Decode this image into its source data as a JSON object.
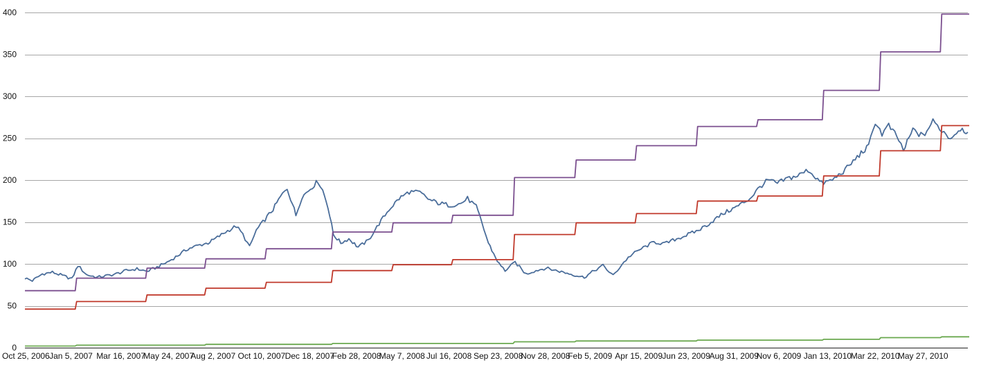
{
  "chart_data": {
    "type": "line",
    "title": "",
    "xlabel": "",
    "ylabel": "",
    "ylim": [
      0,
      400
    ],
    "y_ticks": [
      0,
      50,
      100,
      150,
      200,
      250,
      300,
      350,
      400
    ],
    "x_tick_labels": [
      "Oct 25, 2006",
      "Jan 5, 2007",
      "Mar 16, 2007",
      "May 24, 2007",
      "Aug 2, 2007",
      "Oct 10, 2007",
      "Dec 18, 2007",
      "Feb 28, 2008",
      "May 7, 2008",
      "Jul 16, 2008",
      "Sep 23, 2008",
      "Nov 28, 2008",
      "Feb 5, 2009",
      "Apr 15, 2009",
      "Jun 23, 2009",
      "Aug 31, 2009",
      "Nov 6, 2009",
      "Jan 13, 2010",
      "Mar 22, 2010",
      "May 27, 2010"
    ],
    "x_range": [
      "2006-10-25",
      "2010-08-31"
    ],
    "grid": true,
    "legend": "none",
    "series": [
      {
        "color": "#4a6d9a",
        "style": "line",
        "points": [
          [
            "2006-10-25",
            83
          ],
          [
            "2006-11-05",
            80
          ],
          [
            "2006-11-20",
            88
          ],
          [
            "2006-12-05",
            90
          ],
          [
            "2006-12-20",
            86
          ],
          [
            "2007-01-03",
            82
          ],
          [
            "2007-01-12",
            98
          ],
          [
            "2007-01-25",
            87
          ],
          [
            "2007-02-10",
            84
          ],
          [
            "2007-02-25",
            86
          ],
          [
            "2007-03-10",
            88
          ],
          [
            "2007-03-25",
            92
          ],
          [
            "2007-04-10",
            94
          ],
          [
            "2007-04-25",
            91
          ],
          [
            "2007-05-10",
            96
          ],
          [
            "2007-05-25",
            102
          ],
          [
            "2007-06-10",
            110
          ],
          [
            "2007-06-25",
            118
          ],
          [
            "2007-07-10",
            122
          ],
          [
            "2007-07-25",
            125
          ],
          [
            "2007-08-05",
            130
          ],
          [
            "2007-08-20",
            138
          ],
          [
            "2007-09-05",
            145
          ],
          [
            "2007-09-15",
            135
          ],
          [
            "2007-09-25",
            120
          ],
          [
            "2007-10-05",
            140
          ],
          [
            "2007-10-15",
            150
          ],
          [
            "2007-10-30",
            165
          ],
          [
            "2007-11-10",
            180
          ],
          [
            "2007-11-20",
            190
          ],
          [
            "2007-11-28",
            172
          ],
          [
            "2007-12-03",
            158
          ],
          [
            "2007-12-12",
            180
          ],
          [
            "2007-12-25",
            190
          ],
          [
            "2008-01-05",
            199
          ],
          [
            "2008-01-12",
            188
          ],
          [
            "2008-01-20",
            168
          ],
          [
            "2008-01-28",
            135
          ],
          [
            "2008-02-08",
            125
          ],
          [
            "2008-02-20",
            130
          ],
          [
            "2008-03-05",
            120
          ],
          [
            "2008-03-20",
            128
          ],
          [
            "2008-04-05",
            148
          ],
          [
            "2008-04-20",
            165
          ],
          [
            "2008-05-05",
            178
          ],
          [
            "2008-05-20",
            186
          ],
          [
            "2008-06-05",
            185
          ],
          [
            "2008-06-20",
            176
          ],
          [
            "2008-07-05",
            172
          ],
          [
            "2008-07-20",
            170
          ],
          [
            "2008-08-05",
            172
          ],
          [
            "2008-08-15",
            178
          ],
          [
            "2008-08-28",
            168
          ],
          [
            "2008-09-05",
            150
          ],
          [
            "2008-09-15",
            125
          ],
          [
            "2008-09-23",
            112
          ],
          [
            "2008-10-01",
            100
          ],
          [
            "2008-10-10",
            92
          ],
          [
            "2008-10-25",
            102
          ],
          [
            "2008-11-10",
            88
          ],
          [
            "2008-11-25",
            92
          ],
          [
            "2008-12-10",
            95
          ],
          [
            "2009-01-05",
            90
          ],
          [
            "2009-01-25",
            86
          ],
          [
            "2009-02-05",
            84
          ],
          [
            "2009-02-20",
            92
          ],
          [
            "2009-03-05",
            98
          ],
          [
            "2009-03-20",
            86
          ],
          [
            "2009-04-05",
            102
          ],
          [
            "2009-04-15",
            110
          ],
          [
            "2009-05-01",
            118
          ],
          [
            "2009-05-20",
            126
          ],
          [
            "2009-06-05",
            124
          ],
          [
            "2009-06-23",
            130
          ],
          [
            "2009-07-10",
            135
          ],
          [
            "2009-07-25",
            140
          ],
          [
            "2009-08-10",
            148
          ],
          [
            "2009-08-31",
            160
          ],
          [
            "2009-09-20",
            168
          ],
          [
            "2009-10-10",
            178
          ],
          [
            "2009-10-25",
            192
          ],
          [
            "2009-11-06",
            200
          ],
          [
            "2009-11-20",
            196
          ],
          [
            "2009-12-05",
            202
          ],
          [
            "2009-12-20",
            205
          ],
          [
            "2010-01-05",
            212
          ],
          [
            "2010-01-13",
            206
          ],
          [
            "2010-01-25",
            196
          ],
          [
            "2010-02-10",
            200
          ],
          [
            "2010-03-01",
            212
          ],
          [
            "2010-03-22",
            230
          ],
          [
            "2010-04-05",
            240
          ],
          [
            "2010-04-15",
            270
          ],
          [
            "2010-04-25",
            255
          ],
          [
            "2010-05-05",
            265
          ],
          [
            "2010-05-20",
            248
          ],
          [
            "2010-05-27",
            235
          ],
          [
            "2010-06-10",
            260
          ],
          [
            "2010-06-25",
            252
          ],
          [
            "2010-07-10",
            270
          ],
          [
            "2010-07-20",
            262
          ],
          [
            "2010-08-05",
            250
          ],
          [
            "2010-08-20",
            262
          ],
          [
            "2010-08-31",
            257
          ]
        ]
      },
      {
        "color": "#7b4f8f",
        "style": "step",
        "points": [
          [
            "2006-10-25",
            68
          ],
          [
            "2007-01-08",
            83
          ],
          [
            "2007-04-23",
            95
          ],
          [
            "2007-07-20",
            106
          ],
          [
            "2007-10-18",
            118
          ],
          [
            "2008-01-25",
            138
          ],
          [
            "2008-04-24",
            149
          ],
          [
            "2008-07-22",
            158
          ],
          [
            "2008-10-22",
            203
          ],
          [
            "2009-01-22",
            224
          ],
          [
            "2009-04-22",
            241
          ],
          [
            "2009-07-22",
            264
          ],
          [
            "2009-10-20",
            272
          ],
          [
            "2010-01-26",
            307
          ],
          [
            "2010-04-21",
            353
          ],
          [
            "2010-07-21",
            398
          ],
          [
            "2010-08-31",
            398
          ]
        ]
      },
      {
        "color": "#c0392b",
        "style": "step",
        "points": [
          [
            "2006-10-25",
            46
          ],
          [
            "2007-01-08",
            55
          ],
          [
            "2007-04-23",
            63
          ],
          [
            "2007-07-20",
            71
          ],
          [
            "2007-10-18",
            78
          ],
          [
            "2008-01-25",
            92
          ],
          [
            "2008-04-24",
            99
          ],
          [
            "2008-07-22",
            105
          ],
          [
            "2008-10-22",
            135
          ],
          [
            "2009-01-22",
            149
          ],
          [
            "2009-04-22",
            160
          ],
          [
            "2009-07-22",
            175
          ],
          [
            "2009-10-20",
            181
          ],
          [
            "2010-01-26",
            205
          ],
          [
            "2010-04-21",
            235
          ],
          [
            "2010-07-21",
            265
          ],
          [
            "2010-08-31",
            265
          ]
        ]
      },
      {
        "color": "#6aa84f",
        "style": "step",
        "points": [
          [
            "2006-10-25",
            2
          ],
          [
            "2007-01-08",
            3
          ],
          [
            "2007-07-20",
            4
          ],
          [
            "2007-10-18",
            4
          ],
          [
            "2008-01-25",
            5
          ],
          [
            "2008-07-22",
            5
          ],
          [
            "2008-10-22",
            7
          ],
          [
            "2009-01-22",
            8
          ],
          [
            "2009-04-22",
            8
          ],
          [
            "2009-07-22",
            9
          ],
          [
            "2009-10-20",
            9
          ],
          [
            "2010-01-26",
            10
          ],
          [
            "2010-04-21",
            12
          ],
          [
            "2010-07-21",
            13
          ],
          [
            "2010-08-31",
            13
          ]
        ]
      }
    ]
  }
}
